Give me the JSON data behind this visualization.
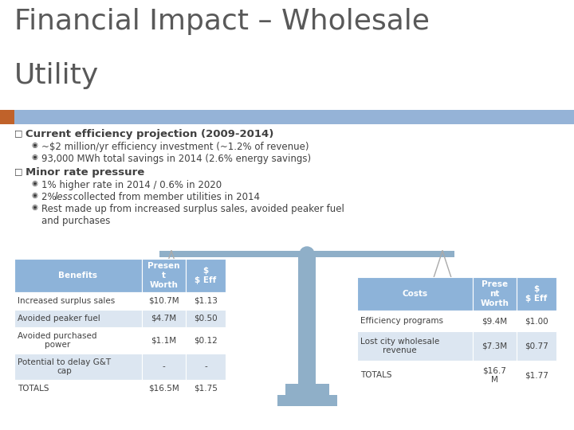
{
  "title_line1": "Financial Impact – Wholesale",
  "title_line2": "Utility",
  "title_fontsize": 26,
  "title_color": "#595959",
  "bg_color": "#ffffff",
  "header_bar_color": "#95b3d7",
  "orange_rect_color": "#c0622a",
  "bullet_color": "#404040",
  "bullet1_main": "Current efficiency projection (2009-2014)",
  "bullet1_sub1": "~$2 million/yr efficiency investment (~1.2% of revenue)",
  "bullet1_sub2": "93,000 MWh total savings in 2014 (2.6% energy savings)",
  "bullet2_main": "Minor rate pressure",
  "bullet2_sub1": "1% higher rate in 2014 / 0.6% in 2020",
  "bullet2_sub2_pre": "2% ",
  "bullet2_sub2_italic": "less",
  "bullet2_sub2_post": " collected from member utilities in 2014",
  "bullet2_sub3": "Rest made up from increased surplus sales, avoided peaker fuel\nand purchases",
  "benefits_header": [
    "Benefits",
    "Presen\nt\nWorth",
    "$\n$ Eff"
  ],
  "benefits_rows": [
    [
      "Increased surplus sales",
      "$10.7M",
      "$1.13"
    ],
    [
      "Avoided peaker fuel",
      "$4.7M",
      "$0.50"
    ],
    [
      "Avoided purchased\npower",
      "$1.1M",
      "$0.12"
    ],
    [
      "Potential to delay G&T\ncap",
      "-",
      "-"
    ],
    [
      "TOTALS",
      "$16.5M",
      "$1.75"
    ]
  ],
  "costs_header": [
    "Costs",
    "Prese\nnt\nWorth",
    "$\n$ Eff"
  ],
  "costs_rows": [
    [
      "Efficiency programs",
      "$9.4M",
      "$1.00"
    ],
    [
      "Lost city wholesale\nrevenue",
      "$7.3M",
      "$0.77"
    ],
    [
      "TOTALS",
      "$16.7\nM",
      "$1.77"
    ]
  ],
  "table_header_bg": "#8db3d9",
  "table_row_bg1": "#ffffff",
  "table_row_bg2": "#dce6f1",
  "table_header_text": "#ffffff",
  "table_text": "#404040",
  "scale_color": "#8fafc8"
}
